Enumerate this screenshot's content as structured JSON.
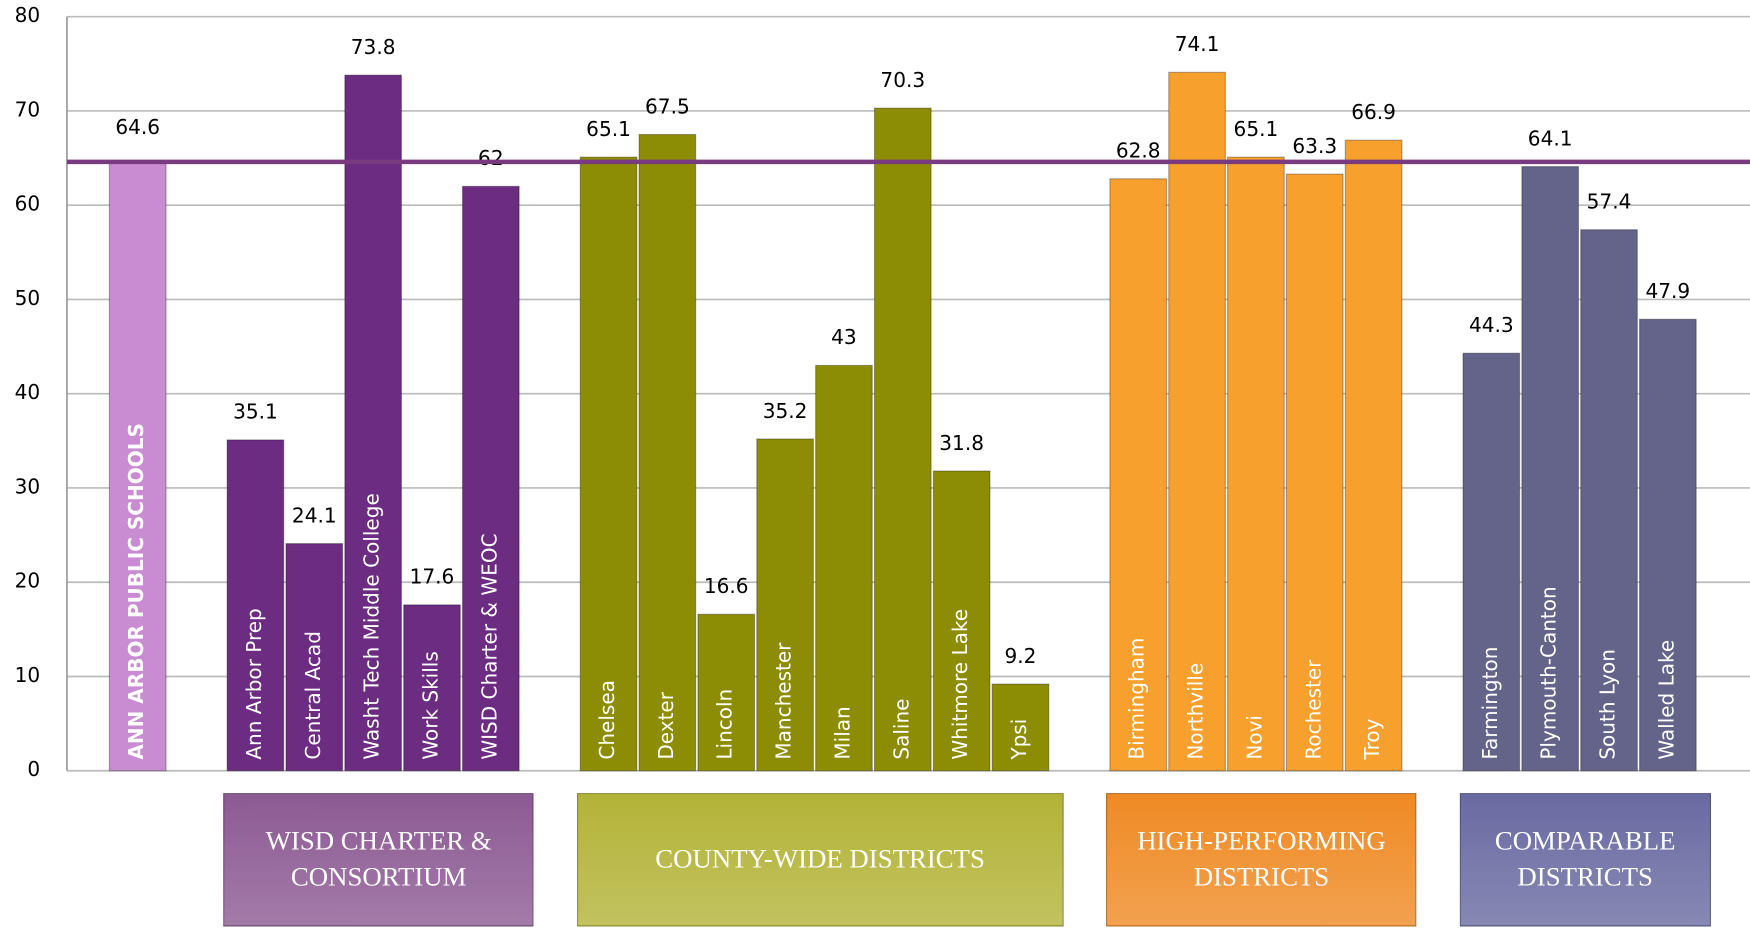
{
  "chart_data": {
    "type": "bar",
    "ylim": [
      0,
      80
    ],
    "yticks": [
      0,
      10,
      20,
      30,
      40,
      50,
      60,
      70,
      80
    ],
    "grid": true,
    "reference_line": {
      "value": 64.6,
      "color": "#7a3a80"
    },
    "groups": [
      {
        "label": null,
        "color": "#c98bd2",
        "box_color": null,
        "categories": [
          "ANN ARBOR PUBLIC SCHOOLS"
        ],
        "values": [
          64.6
        ]
      },
      {
        "label": "WISD CHARTER & CONSORTIUM",
        "color": "#6b2c82",
        "box_color": "#8c5a93",
        "categories": [
          "Ann Arbor Prep",
          "Central Acad",
          "Washt Tech Middle College",
          "Work Skills",
          "WISD Charter & WEOC"
        ],
        "values": [
          35.1,
          24.1,
          73.8,
          17.6,
          62
        ]
      },
      {
        "label": "COUNTY-WIDE DISTRICTS",
        "color": "#8d8d05",
        "box_color": "#b3b338",
        "categories": [
          "Chelsea",
          "Dexter",
          "Lincoln",
          "Manchester",
          "Milan",
          "Saline",
          "Whitmore Lake",
          "Ypsi"
        ],
        "values": [
          65.1,
          67.5,
          16.6,
          35.2,
          43,
          70.3,
          31.8,
          9.2
        ]
      },
      {
        "label": "HIGH-PERFORMING DISTRICTS",
        "color": "#f8a02e",
        "box_color": "#ef8a24",
        "categories": [
          "Birmingham",
          "Northville",
          "Novi",
          "Rochester",
          "Troy"
        ],
        "values": [
          62.8,
          74.1,
          65.1,
          63.3,
          66.9
        ]
      },
      {
        "label": "COMPARABLE DISTRICTS",
        "color": "#64648a",
        "box_color": "#6a6aa2",
        "categories": [
          "Farmington",
          "Plymouth-Canton",
          "South Lyon",
          "Walled Lake"
        ],
        "values": [
          44.3,
          64.1,
          57.4,
          47.9
        ]
      }
    ]
  }
}
